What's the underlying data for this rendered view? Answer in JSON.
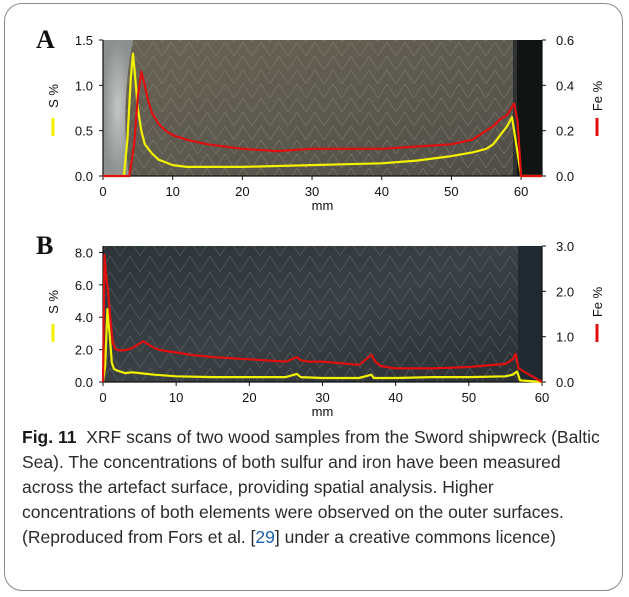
{
  "figure": {
    "caption_label": "Fig. 11",
    "caption_pre": "XRF scans of two wood samples from the Sword shipwreck (Baltic Sea). The concentrations of both sulfur and iron have been measured across the artefact surface, providing spatial analysis. Higher concentrations of both elements were observed on the outer surfaces. (Reproduced from Fors et al. [",
    "caption_ref": "29",
    "caption_post": "] under a creative commons licence)"
  },
  "colors": {
    "sulfur": "#f2f200",
    "iron": "#e01010",
    "axis": "#111111"
  },
  "chart_data": [
    {
      "type": "line",
      "panel_label": "A",
      "xlabel": "mm",
      "xlim": [
        0,
        63
      ],
      "xticks": [
        0,
        10,
        20,
        30,
        40,
        50,
        60
      ],
      "y_left": {
        "label": "S %",
        "lim": [
          0,
          1.5
        ],
        "ticks": [
          "0.0",
          "0.5",
          "1.0",
          "1.5"
        ]
      },
      "y_right": {
        "label": "Fe %",
        "lim": [
          0,
          0.6
        ],
        "ticks": [
          "0.0",
          "0.2",
          "0.4",
          "0.6"
        ]
      },
      "series": [
        {
          "name": "S %",
          "axis": "left",
          "x": [
            0,
            3,
            3.5,
            4,
            4.3,
            4.6,
            5,
            5.5,
            6,
            7,
            8,
            9,
            10,
            12,
            15,
            20,
            25,
            30,
            35,
            40,
            45,
            50,
            53,
            55,
            56,
            57,
            58,
            58.7,
            59.2,
            60,
            63
          ],
          "y": [
            0,
            0,
            0.4,
            1.1,
            1.35,
            1.1,
            0.75,
            0.5,
            0.35,
            0.25,
            0.18,
            0.15,
            0.12,
            0.1,
            0.1,
            0.1,
            0.11,
            0.12,
            0.13,
            0.14,
            0.17,
            0.22,
            0.26,
            0.3,
            0.35,
            0.45,
            0.55,
            0.65,
            0.4,
            0,
            0
          ]
        },
        {
          "name": "Fe %",
          "axis": "right",
          "x": [
            0,
            3.8,
            4.5,
            5,
            5.5,
            6,
            6.5,
            7,
            8,
            9,
            10,
            12,
            15,
            20,
            25,
            30,
            35,
            40,
            45,
            50,
            53,
            55,
            56,
            57,
            58,
            59,
            59.5,
            60,
            63
          ],
          "y": [
            0,
            0,
            0.15,
            0.35,
            0.46,
            0.4,
            0.33,
            0.28,
            0.23,
            0.2,
            0.18,
            0.16,
            0.14,
            0.12,
            0.11,
            0.12,
            0.12,
            0.12,
            0.13,
            0.14,
            0.16,
            0.2,
            0.22,
            0.25,
            0.27,
            0.32,
            0.24,
            0,
            0
          ]
        }
      ]
    },
    {
      "type": "line",
      "panel_label": "B",
      "xlabel": "mm",
      "xlim": [
        0,
        60
      ],
      "xticks": [
        0,
        10,
        20,
        30,
        40,
        50,
        60
      ],
      "y_left": {
        "label": "S %",
        "lim": [
          0,
          8.4
        ],
        "ticks": [
          "0.0",
          "2.0",
          "4.0",
          "6.0",
          "8.0"
        ]
      },
      "y_right": {
        "label": "Fe %",
        "lim": [
          0,
          3.0
        ],
        "ticks": [
          "0.0",
          "1.0",
          "2.0",
          "3.0"
        ]
      },
      "series": [
        {
          "name": "S %",
          "axis": "left",
          "x": [
            0,
            0.3,
            0.6,
            0.9,
            1.2,
            1.5,
            2,
            3,
            4,
            5,
            7,
            10,
            15,
            20,
            25,
            26.5,
            27,
            30,
            35,
            36.7,
            37,
            40,
            45,
            50,
            55,
            56,
            56.6,
            57,
            60
          ],
          "y": [
            0,
            1.0,
            4.5,
            3.0,
            1.2,
            0.8,
            0.7,
            0.55,
            0.6,
            0.55,
            0.45,
            0.35,
            0.3,
            0.3,
            0.3,
            0.5,
            0.3,
            0.25,
            0.25,
            0.45,
            0.25,
            0.25,
            0.3,
            0.3,
            0.35,
            0.45,
            0.65,
            0.1,
            0
          ]
        },
        {
          "name": "Fe %",
          "axis": "right",
          "x": [
            0,
            0.2,
            0.4,
            0.7,
            1.0,
            1.3,
            1.6,
            2.0,
            2.5,
            3,
            4,
            5,
            5.5,
            6,
            7,
            8,
            10,
            12,
            15,
            20,
            25,
            26.5,
            27,
            28,
            30,
            35,
            36.7,
            37.2,
            38,
            40,
            45,
            50,
            55,
            56,
            56.4,
            56.8,
            60
          ],
          "y": [
            0,
            2.8,
            2.4,
            2.0,
            1.4,
            0.9,
            0.75,
            0.7,
            0.7,
            0.7,
            0.75,
            0.85,
            0.9,
            0.85,
            0.75,
            0.7,
            0.65,
            0.6,
            0.55,
            0.5,
            0.45,
            0.55,
            0.48,
            0.45,
            0.45,
            0.38,
            0.6,
            0.45,
            0.35,
            0.3,
            0.3,
            0.33,
            0.4,
            0.5,
            0.62,
            0.3,
            0
          ]
        }
      ]
    }
  ]
}
